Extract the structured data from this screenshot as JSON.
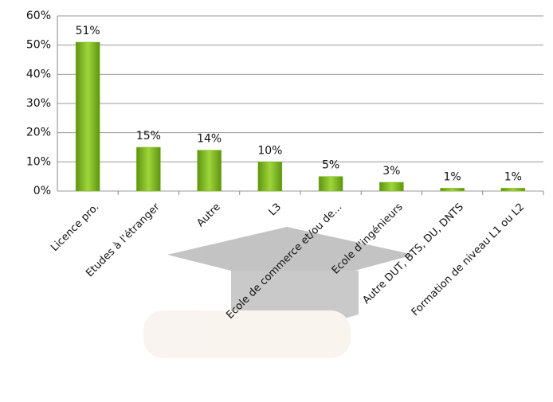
{
  "chart_data": {
    "type": "bar",
    "categories": [
      "Licence pro.",
      "Etudes à l'étranger",
      "Autre",
      "L3",
      "Ecole de commerce et/ou de...",
      "Ecole d'ingénieurs",
      "Autre DUT, BTS, DU, DNTS",
      "Formation de niveau L1 ou L2"
    ],
    "values": [
      51,
      15,
      14,
      10,
      5,
      3,
      1,
      1
    ],
    "value_labels": [
      "51%",
      "15%",
      "14%",
      "10%",
      "5%",
      "3%",
      "1%",
      "1%"
    ],
    "color": "#7cb518",
    "ylim": [
      0,
      60
    ],
    "yticks": [
      {
        "value": 0,
        "label": "0%"
      },
      {
        "value": 10,
        "label": "10%"
      },
      {
        "value": 20,
        "label": "20%"
      },
      {
        "value": 30,
        "label": "30%"
      },
      {
        "value": 40,
        "label": "40%"
      },
      {
        "value": 50,
        "label": "50%"
      },
      {
        "value": 60,
        "label": "60%"
      }
    ],
    "grid": true
  }
}
